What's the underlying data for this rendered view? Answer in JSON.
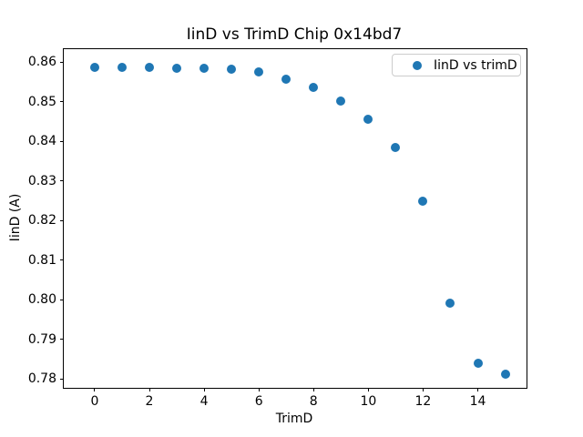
{
  "figure": {
    "title": "IinD vs TrimD Chip 0x14bd7",
    "xlabel": "TrimD",
    "ylabel": "IinD (A)",
    "legend": {
      "label": "IinD vs trimD"
    }
  },
  "colors": {
    "marker": "#1f77b4",
    "spine": "#000000",
    "background": "#ffffff",
    "legend_border": "#cccccc",
    "text": "#000000"
  },
  "chart_data": {
    "type": "scatter",
    "title": "IinD vs TrimD Chip 0x14bd7",
    "xlabel": "TrimD",
    "ylabel": "IinD (A)",
    "grid": false,
    "legend_position": "upper right",
    "xlim": [
      -1.13,
      15.78
    ],
    "ylim": [
      0.7778,
      0.8633
    ],
    "xticks": [
      0,
      2,
      4,
      6,
      8,
      10,
      12,
      14
    ],
    "xtick_labels": [
      "0",
      "2",
      "4",
      "6",
      "8",
      "10",
      "12",
      "14"
    ],
    "yticks": [
      0.78,
      0.79,
      0.8,
      0.81,
      0.82,
      0.83,
      0.84,
      0.85,
      0.86
    ],
    "ytick_labels": [
      "0.78",
      "0.79",
      "0.80",
      "0.81",
      "0.82",
      "0.83",
      "0.84",
      "0.85",
      "0.86"
    ],
    "series": [
      {
        "name": "IinD vs trimD",
        "color": "#1f77b4",
        "x": [
          0,
          1,
          2,
          3,
          4,
          5,
          6,
          7,
          8,
          9,
          10,
          11,
          12,
          13,
          14,
          15
        ],
        "y": [
          0.8587,
          0.8587,
          0.8587,
          0.8585,
          0.8585,
          0.8582,
          0.8575,
          0.8557,
          0.8536,
          0.8502,
          0.8455,
          0.8384,
          0.8249,
          0.7991,
          0.7841,
          0.7813
        ]
      }
    ]
  }
}
